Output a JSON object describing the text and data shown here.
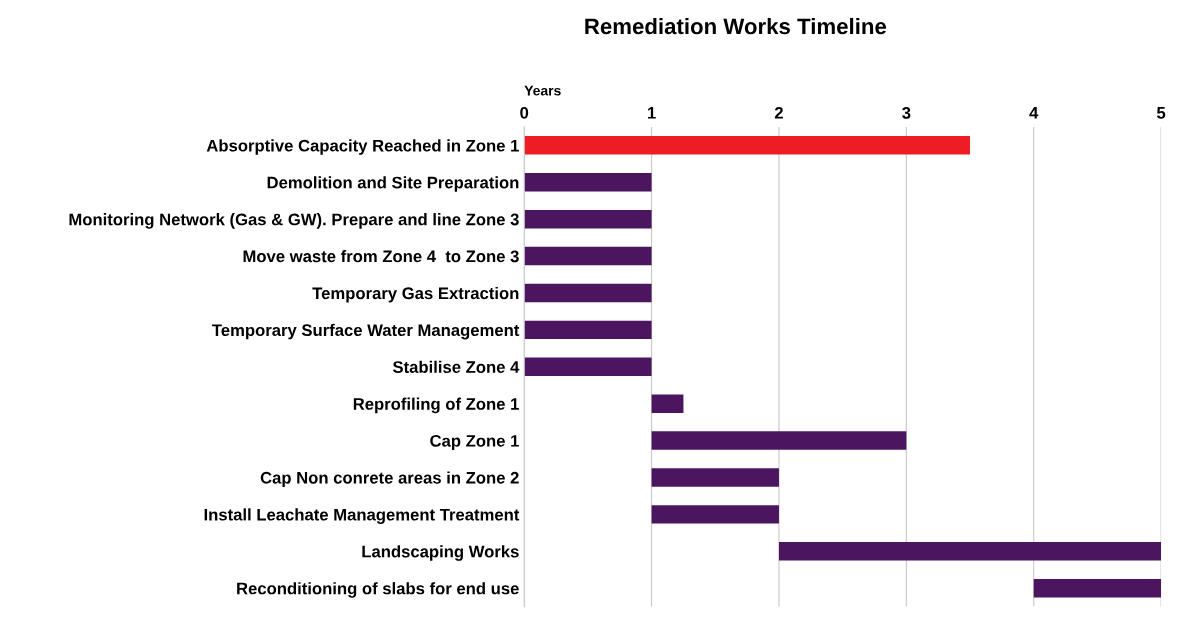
{
  "chart_data": {
    "type": "bar",
    "orientation": "horizontal",
    "title": "Remediation Works Timeline",
    "xlabel": "Years",
    "categories": [
      "Absorptive Capacity Reached in Zone 1",
      "Demolition and Site Preparation",
      "Monitoring Network (Gas & GW). Prepare and line Zone 3",
      "Move waste from Zone 4  to Zone 3",
      "Temporary Gas Extraction",
      "Temporary Surface Water Management",
      "Stabilise Zone 4",
      "Reprofiling of Zone 1",
      "Cap Zone 1",
      "Cap Non conrete areas in Zone 2",
      "Install Leachate Management Treatment",
      "Landscaping Works",
      "Reconditioning of slabs for end use"
    ],
    "base": [
      0,
      0,
      0,
      0,
      0,
      0,
      0,
      1,
      1,
      1,
      1,
      2,
      4
    ],
    "values": [
      3.5,
      1,
      1,
      1,
      1,
      1,
      1,
      0.25,
      2,
      1,
      1,
      3,
      1
    ],
    "colors": [
      "#ee1c25",
      "#4b1560",
      "#4b1560",
      "#4b1560",
      "#4b1560",
      "#4b1560",
      "#4b1560",
      "#4b1560",
      "#4b1560",
      "#4b1560",
      "#4b1560",
      "#4b1560",
      "#4b1560"
    ],
    "xlim": [
      0,
      5
    ],
    "xticks": [
      0,
      1,
      2,
      3,
      4,
      5
    ],
    "grid": "x"
  }
}
